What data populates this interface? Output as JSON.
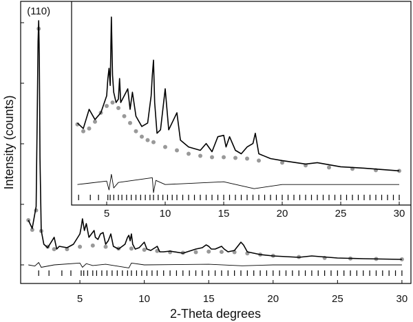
{
  "chart_data": [
    {
      "type": "line",
      "x_label": "2-Theta degrees",
      "y_label": "Intensity  (counts)",
      "annotation": "(110)",
      "annotation_x": 1.8,
      "xlim": [
        0.4,
        30.7
      ],
      "xticks": [
        5,
        10,
        15,
        20,
        25,
        30
      ],
      "ylim": [
        -307,
        4352
      ],
      "yticks": [
        0,
        1000,
        2000,
        3000,
        4000
      ],
      "ytick_labels_shown": false,
      "series": [
        {
          "style": "dots",
          "color": "#999999",
          "x": [
            1.0,
            1.3,
            1.6,
            1.8,
            2.0,
            2.5,
            3,
            4,
            5,
            6,
            7,
            8,
            9,
            10,
            11,
            12,
            13,
            14,
            15,
            16,
            17,
            18,
            19,
            20,
            22,
            24,
            26,
            28,
            30
          ],
          "values": [
            739,
            580,
            900,
            3900,
            560,
            300,
            260,
            260,
            300,
            320,
            300,
            270,
            270,
            250,
            230,
            210,
            200,
            210,
            220,
            215,
            210,
            190,
            170,
            150,
            130,
            115,
            105,
            98,
            92
          ]
        },
        {
          "style": "line",
          "color": "#000000",
          "x": [
            1.0,
            1.3,
            1.6,
            1.7,
            1.75,
            1.8,
            1.85,
            1.9,
            2.0,
            2.2,
            2.5,
            3.0,
            3.2,
            3.4,
            4.0,
            4.5,
            5.0,
            5.1,
            5.2,
            5.35,
            5.5,
            5.7,
            5.9,
            6.1,
            6.2,
            6.4,
            6.6,
            6.8,
            7.0,
            7.2,
            7.4,
            7.6,
            8.0,
            8.5,
            8.7,
            8.8,
            8.9,
            9.0,
            9.1,
            9.3,
            9.6,
            10.0,
            10.2,
            10.5,
            11.0,
            11.2,
            11.5,
            12.0,
            13.0,
            14.0,
            14.5,
            14.8,
            15.0,
            15.2,
            15.5,
            16.0,
            16.2,
            16.5,
            17.0,
            17.5,
            17.7,
            18.0,
            19,
            20,
            22,
            23,
            25,
            27,
            30
          ],
          "values": [
            739,
            602,
            966,
            2670,
            3693,
            4034,
            3466,
            1761,
            568,
            341,
            284,
            455,
            261,
            307,
            284,
            341,
            511,
            625,
            761,
            568,
            682,
            455,
            511,
            568,
            455,
            420,
            511,
            534,
            341,
            398,
            511,
            307,
            261,
            341,
            455,
            489,
            398,
            511,
            341,
            261,
            284,
            375,
            261,
            239,
            307,
            216,
            216,
            227,
            193,
            261,
            284,
            330,
            307,
            261,
            261,
            307,
            261,
            216,
            239,
            375,
            330,
            216,
            170,
            148,
            125,
            148,
            114,
            102,
            91
          ]
        },
        {
          "style": "line",
          "color": "#000000",
          "x": [
            1,
            1.5,
            1.8,
            2,
            3,
            5,
            5.2,
            5.5,
            6,
            7,
            8.8,
            9,
            10,
            15,
            17.6,
            20,
            30
          ],
          "values": [
            0,
            -20,
            40,
            -40,
            0,
            30,
            -40,
            20,
            -10,
            10,
            -50,
            30,
            0,
            10,
            -15,
            0,
            0
          ]
        }
      ],
      "reflections": [
        1.8,
        2.6,
        3.6,
        4.3,
        5.1,
        5.3,
        5.6,
        6.0,
        6.3,
        6.7,
        7.1,
        7.5,
        7.9,
        8.3,
        8.7,
        9.0,
        9.4,
        9.8,
        10.2,
        10.6,
        11.0,
        11.5,
        12.0,
        12.5,
        13.0,
        13.5,
        14.0,
        14.5,
        15.0,
        15.5,
        16.0,
        16.5,
        17.0,
        17.5,
        18.0,
        18.5,
        19.0,
        19.5,
        20.0,
        20.5,
        21.0,
        21.5,
        22.0,
        22.5,
        23.0,
        23.5,
        24.0,
        24.5,
        25.0,
        25.5,
        26.0,
        26.5,
        27.0,
        27.5,
        28.0,
        28.5,
        29.0,
        29.5,
        30.0
      ]
    },
    {
      "type": "line",
      "xlim": [
        2.0,
        31.0
      ],
      "xticks": [
        5,
        10,
        15,
        20,
        25,
        30
      ],
      "ylim": [
        -30,
        268
      ],
      "series": [
        {
          "style": "dots",
          "color": "#999999",
          "x": [
            2.5,
            3,
            3.5,
            4,
            4.5,
            5,
            5.5,
            6,
            6.5,
            7,
            7.5,
            8,
            8.5,
            9,
            10,
            11,
            12,
            13,
            14,
            15,
            16,
            17,
            18,
            20,
            22,
            24,
            26,
            28,
            30
          ],
          "values": [
            88,
            78,
            82,
            92,
            105,
            115,
            120,
            112,
            100,
            90,
            78,
            70,
            65,
            62,
            55,
            50,
            45,
            42,
            40,
            40,
            39,
            38,
            35,
            32,
            28,
            25,
            23,
            21,
            20
          ]
        },
        {
          "style": "line",
          "color": "#000000",
          "x": [
            2.5,
            3,
            3.5,
            4,
            4.5,
            5,
            5.1,
            5.2,
            5.3,
            5.4,
            5.5,
            5.6,
            5.8,
            6.0,
            6.1,
            6.2,
            6.5,
            6.8,
            7.0,
            7.2,
            7.5,
            8,
            8.5,
            8.8,
            8.9,
            9.0,
            9.1,
            9.3,
            9.6,
            10,
            10.3,
            11,
            11.3,
            12,
            13,
            13.5,
            14,
            14.5,
            15,
            15.2,
            15.5,
            16,
            16.5,
            17,
            17.5,
            17.7,
            18,
            19,
            20,
            22,
            23,
            25,
            27,
            30
          ],
          "values": [
            90,
            82,
            110,
            95,
            105,
            130,
            155,
            170,
            145,
            245,
            160,
            135,
            120,
            125,
            155,
            120,
            130,
            140,
            110,
            135,
            100,
            85,
            90,
            130,
            160,
            182,
            120,
            75,
            80,
            140,
            80,
            105,
            65,
            55,
            50,
            60,
            48,
            70,
            72,
            55,
            70,
            50,
            45,
            55,
            60,
            75,
            45,
            38,
            35,
            30,
            32,
            26,
            24,
            20
          ]
        },
        {
          "style": "line",
          "color": "#000000",
          "x": [
            2.5,
            5,
            5.2,
            5.4,
            5.6,
            6,
            8.9,
            9,
            9.2,
            10,
            15,
            17.6,
            20,
            30
          ],
          "values": [
            0,
            5,
            -8,
            15,
            -5,
            3,
            10,
            -12,
            6,
            0,
            4,
            -6,
            0,
            0
          ]
        }
      ],
      "reflections": [
        2.6,
        3.6,
        4.3,
        5.1,
        5.3,
        5.6,
        6.0,
        6.3,
        6.7,
        7.1,
        7.5,
        7.9,
        8.3,
        8.7,
        9.0,
        9.4,
        9.8,
        10.2,
        10.6,
        11.0,
        11.5,
        12.0,
        12.5,
        13.0,
        13.5,
        14.0,
        14.5,
        15.0,
        15.5,
        16.0,
        16.5,
        17.0,
        17.5,
        18.0,
        18.5,
        19.0,
        19.5,
        20.0,
        20.5,
        21.0,
        21.5,
        22.0,
        22.5,
        23.0,
        23.5,
        24.0,
        24.5,
        25.0,
        25.5,
        26.0,
        26.5,
        27.0,
        27.5,
        28.0,
        28.5,
        29.0,
        29.5,
        30.0
      ]
    }
  ]
}
